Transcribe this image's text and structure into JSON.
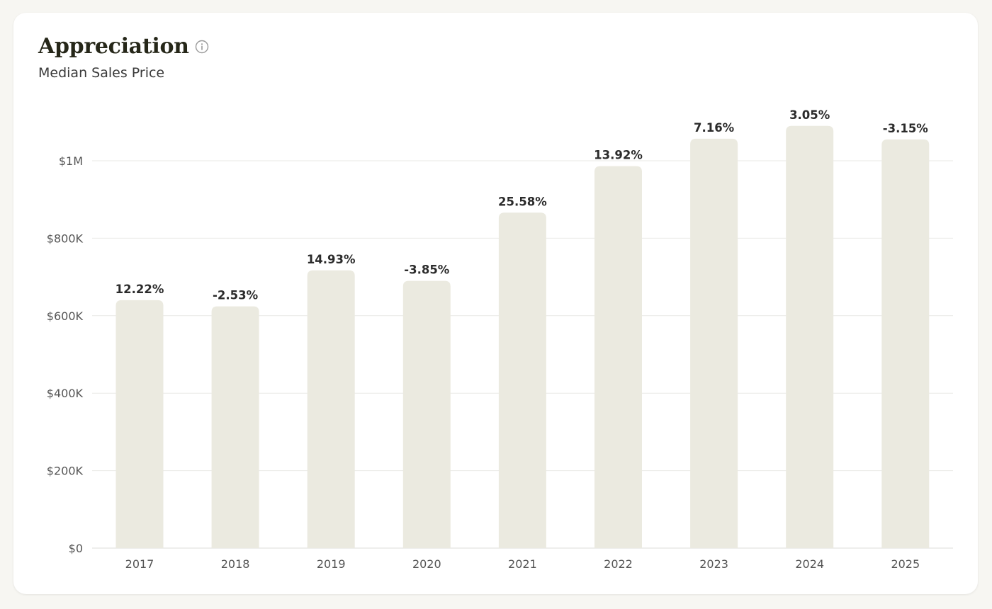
{
  "header": {
    "title": "Appreciation",
    "subtitle": "Median Sales Price",
    "info_icon": "info-icon"
  },
  "colors": {
    "bar": "#ebeae0",
    "grid": "#e9e9e6",
    "baseline": "#dcdcd8"
  },
  "chart_data": {
    "type": "bar",
    "categories": [
      "2017",
      "2018",
      "2019",
      "2020",
      "2021",
      "2022",
      "2023",
      "2024",
      "2025"
    ],
    "values": [
      640000,
      624000,
      717000,
      690000,
      866000,
      986000,
      1057000,
      1090000,
      1055000
    ],
    "data_labels": [
      "12.22%",
      "-2.53%",
      "14.93%",
      "-3.85%",
      "25.58%",
      "13.92%",
      "7.16%",
      "3.05%",
      "-3.15%"
    ],
    "title": "Appreciation",
    "subtitle": "Median Sales Price",
    "xlabel": "",
    "ylabel": "",
    "ylim": [
      0,
      1000000
    ],
    "yticks": [
      0,
      200000,
      400000,
      600000,
      800000,
      1000000
    ],
    "ytick_labels": [
      "$0",
      "$200K",
      "$400K",
      "$600K",
      "$800K",
      "$1M"
    ],
    "grid": true,
    "legend": "none"
  }
}
